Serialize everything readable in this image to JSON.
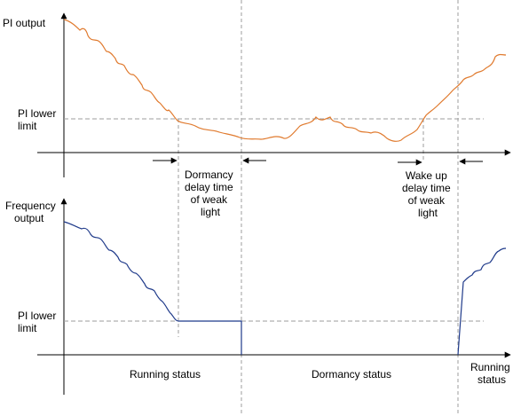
{
  "top_panel": {
    "y_axis_label": "PI output",
    "lower_limit_label": [
      "PI lower",
      "limit"
    ],
    "dormancy_delay_label": [
      "Dormancy",
      "delay time",
      "of weak",
      "light"
    ],
    "wakeup_delay_label": [
      "Wake up",
      "delay time",
      "of weak",
      "light"
    ]
  },
  "bottom_panel": {
    "y_axis_label": [
      "Frequency",
      "output"
    ],
    "lower_limit_label": [
      "PI lower",
      "limit"
    ]
  },
  "status_labels": {
    "running_1": "Running status",
    "dormancy": "Dormancy status",
    "running_2": [
      "Running",
      "status"
    ]
  },
  "colors": {
    "pi_output_curve": "#E07A2E",
    "frequency_curve": "#1F3A8A",
    "axis": "#000000",
    "guide_lines": "#9E9E9E"
  }
}
